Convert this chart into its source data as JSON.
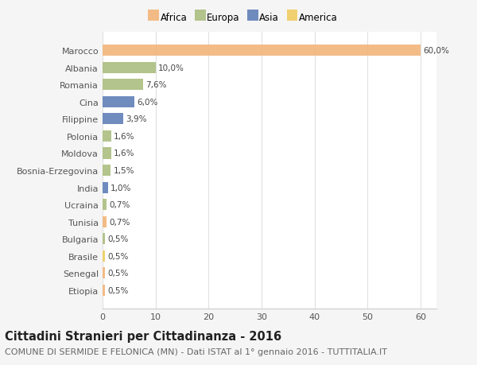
{
  "countries": [
    "Marocco",
    "Albania",
    "Romania",
    "Cina",
    "Filippine",
    "Polonia",
    "Moldova",
    "Bosnia-Erzegovina",
    "India",
    "Ucraina",
    "Tunisia",
    "Bulgaria",
    "Brasile",
    "Senegal",
    "Etiopia"
  ],
  "values": [
    60.0,
    10.0,
    7.6,
    6.0,
    3.9,
    1.6,
    1.6,
    1.5,
    1.0,
    0.7,
    0.7,
    0.5,
    0.5,
    0.5,
    0.5
  ],
  "labels": [
    "60,0%",
    "10,0%",
    "7,6%",
    "6,0%",
    "3,9%",
    "1,6%",
    "1,6%",
    "1,5%",
    "1,0%",
    "0,7%",
    "0,7%",
    "0,5%",
    "0,5%",
    "0,5%",
    "0,5%"
  ],
  "continents": [
    "Africa",
    "Europa",
    "Europa",
    "Asia",
    "Asia",
    "Europa",
    "Europa",
    "Europa",
    "Asia",
    "Europa",
    "Africa",
    "Europa",
    "America",
    "Africa",
    "Africa"
  ],
  "continent_colors": {
    "Africa": "#F2B57A",
    "Europa": "#ABBE80",
    "Asia": "#6080B8",
    "America": "#F0CC60"
  },
  "legend_order": [
    "Africa",
    "Europa",
    "Asia",
    "America"
  ],
  "title": "Cittadini Stranieri per Cittadinanza - 2016",
  "subtitle": "COMUNE DI SERMIDE E FELONICA (MN) - Dati ISTAT al 1° gennaio 2016 - TUTTITALIA.IT",
  "xlim": [
    0,
    63
  ],
  "xticks": [
    0,
    10,
    20,
    30,
    40,
    50,
    60
  ],
  "background_color": "#f5f5f5",
  "plot_bg_color": "#ffffff",
  "title_fontsize": 10.5,
  "subtitle_fontsize": 8.0,
  "label_fontsize": 7.5,
  "tick_fontsize": 8.0,
  "legend_fontsize": 8.5
}
